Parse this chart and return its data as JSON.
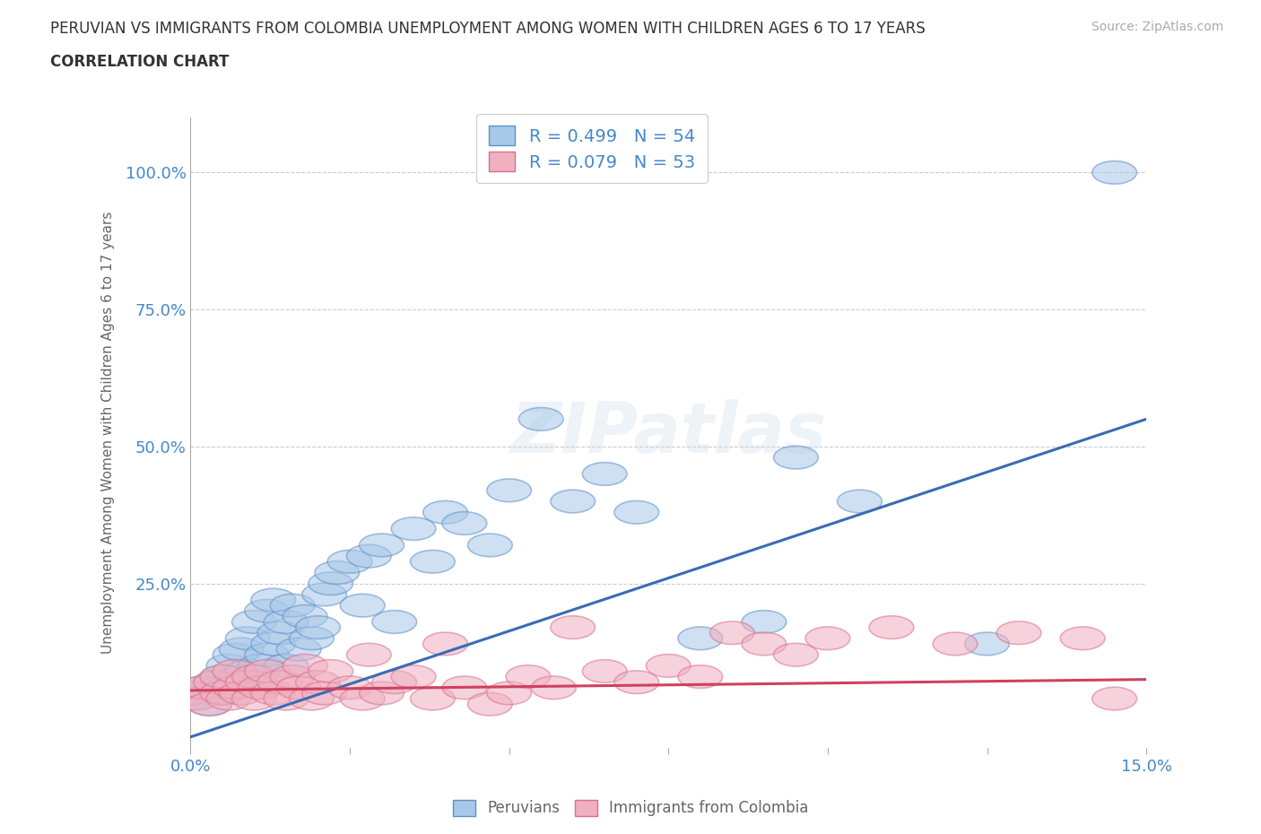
{
  "title_line1": "PERUVIAN VS IMMIGRANTS FROM COLOMBIA UNEMPLOYMENT AMONG WOMEN WITH CHILDREN AGES 6 TO 17 YEARS",
  "title_line2": "CORRELATION CHART",
  "source_text": "Source: ZipAtlas.com",
  "ylabel": "Unemployment Among Women with Children Ages 6 to 17 years",
  "xlim": [
    0.0,
    0.15
  ],
  "ylim": [
    -0.05,
    1.1
  ],
  "xticks": [
    0.0,
    0.025,
    0.05,
    0.075,
    0.1,
    0.125,
    0.15
  ],
  "xticklabels": [
    "0.0%",
    "",
    "",
    "",
    "",
    "",
    "15.0%"
  ],
  "ytick_positions": [
    0.0,
    0.25,
    0.5,
    0.75,
    1.0
  ],
  "ytick_labels": [
    "",
    "25.0%",
    "50.0%",
    "75.0%",
    "100.0%"
  ],
  "blue_color": "#a8c8e8",
  "pink_color": "#f0b0c0",
  "blue_edge_color": "#6090c8",
  "pink_edge_color": "#d87090",
  "blue_line_color": "#3a6cb0",
  "pink_line_color": "#d04060",
  "legend_blue_label": "R = 0.499   N = 54",
  "legend_pink_label": "R = 0.079   N = 53",
  "series_label_blue": "Peruvians",
  "series_label_pink": "Immigrants from Colombia",
  "blue_line_x0": 0.0,
  "blue_line_y0": -0.03,
  "blue_line_x1": 0.15,
  "blue_line_y1": 0.55,
  "pink_line_x0": 0.0,
  "pink_line_y0": 0.055,
  "pink_line_x1": 0.15,
  "pink_line_y1": 0.075,
  "blue_scatter_x": [
    0.0,
    0.001,
    0.002,
    0.003,
    0.004,
    0.005,
    0.005,
    0.006,
    0.006,
    0.007,
    0.007,
    0.008,
    0.008,
    0.009,
    0.009,
    0.01,
    0.01,
    0.011,
    0.012,
    0.012,
    0.013,
    0.013,
    0.014,
    0.015,
    0.015,
    0.016,
    0.017,
    0.018,
    0.019,
    0.02,
    0.021,
    0.022,
    0.023,
    0.025,
    0.027,
    0.028,
    0.03,
    0.032,
    0.035,
    0.038,
    0.04,
    0.043,
    0.047,
    0.05,
    0.055,
    0.06,
    0.065,
    0.07,
    0.08,
    0.09,
    0.095,
    0.105,
    0.125,
    0.145
  ],
  "blue_scatter_y": [
    0.04,
    0.05,
    0.06,
    0.03,
    0.07,
    0.05,
    0.08,
    0.06,
    0.1,
    0.07,
    0.12,
    0.08,
    0.13,
    0.09,
    0.15,
    0.07,
    0.18,
    0.1,
    0.12,
    0.2,
    0.14,
    0.22,
    0.16,
    0.1,
    0.18,
    0.21,
    0.13,
    0.19,
    0.15,
    0.17,
    0.23,
    0.25,
    0.27,
    0.29,
    0.21,
    0.3,
    0.32,
    0.18,
    0.35,
    0.29,
    0.38,
    0.36,
    0.32,
    0.42,
    0.55,
    0.4,
    0.45,
    0.38,
    0.15,
    0.18,
    0.48,
    0.4,
    0.14,
    1.0
  ],
  "pink_scatter_x": [
    0.0,
    0.001,
    0.002,
    0.003,
    0.004,
    0.005,
    0.005,
    0.006,
    0.007,
    0.007,
    0.008,
    0.009,
    0.01,
    0.01,
    0.011,
    0.012,
    0.013,
    0.014,
    0.015,
    0.016,
    0.017,
    0.018,
    0.019,
    0.02,
    0.021,
    0.022,
    0.025,
    0.027,
    0.028,
    0.03,
    0.032,
    0.035,
    0.038,
    0.04,
    0.043,
    0.047,
    0.05,
    0.053,
    0.057,
    0.06,
    0.065,
    0.07,
    0.075,
    0.08,
    0.085,
    0.09,
    0.095,
    0.1,
    0.11,
    0.12,
    0.13,
    0.14,
    0.145
  ],
  "pink_scatter_y": [
    0.05,
    0.04,
    0.06,
    0.03,
    0.07,
    0.05,
    0.08,
    0.04,
    0.06,
    0.09,
    0.05,
    0.07,
    0.04,
    0.08,
    0.06,
    0.09,
    0.05,
    0.07,
    0.04,
    0.08,
    0.06,
    0.1,
    0.04,
    0.07,
    0.05,
    0.09,
    0.06,
    0.04,
    0.12,
    0.05,
    0.07,
    0.08,
    0.04,
    0.14,
    0.06,
    0.03,
    0.05,
    0.08,
    0.06,
    0.17,
    0.09,
    0.07,
    0.1,
    0.08,
    0.16,
    0.14,
    0.12,
    0.15,
    0.17,
    0.14,
    0.16,
    0.15,
    0.04
  ],
  "watermark_text": "ZIPatlas",
  "background_color": "#ffffff",
  "grid_color": "#cccccc"
}
